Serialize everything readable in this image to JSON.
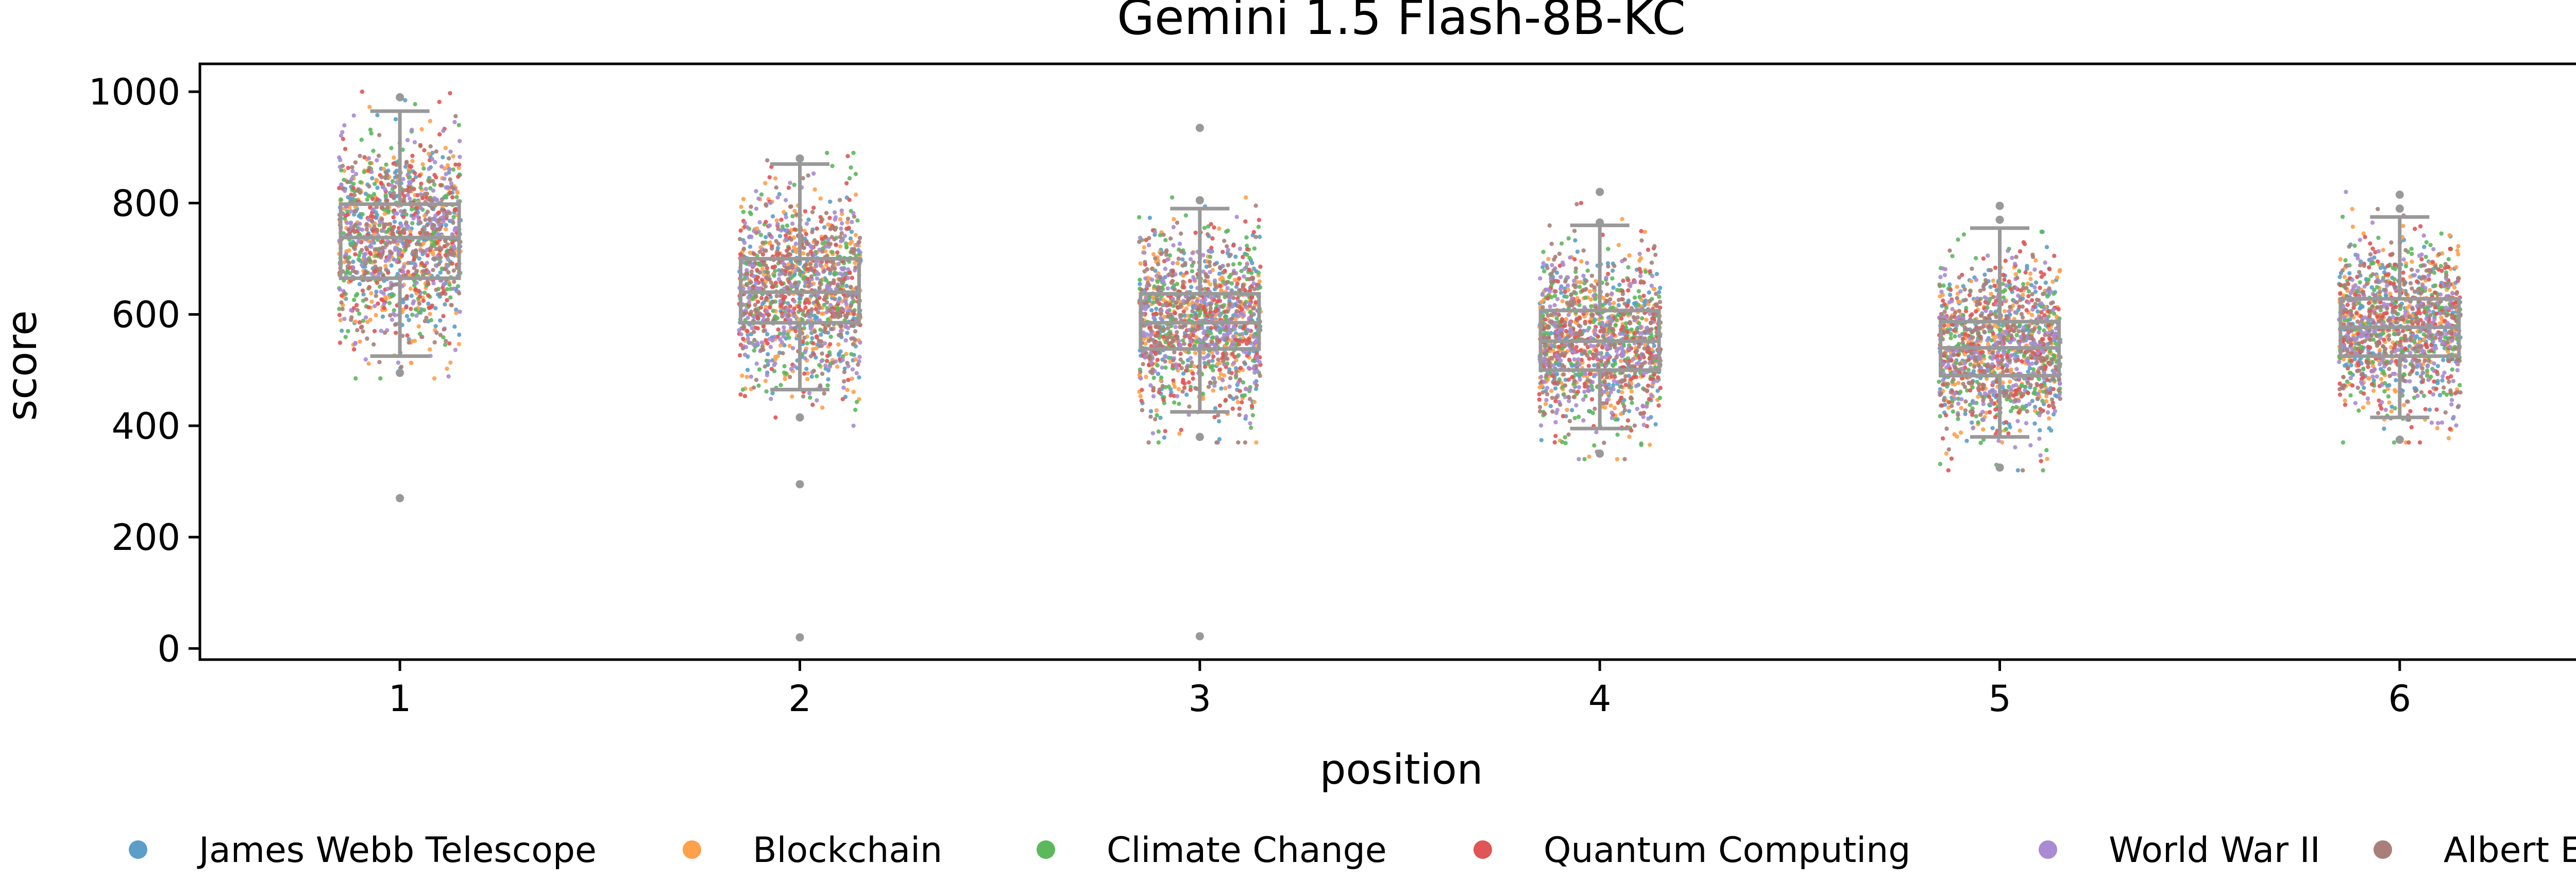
{
  "chart_data": {
    "type": "scatter",
    "subtype": "strip-plot-with-boxplot",
    "title": "Gemini 1.5 Flash-8B-KC",
    "xlabel": "position",
    "ylabel": "score",
    "categories": [
      "1",
      "2",
      "3",
      "4",
      "5",
      "6"
    ],
    "ylim": [
      -20,
      1050
    ],
    "yticks": [
      0,
      200,
      400,
      600,
      800,
      1000
    ],
    "grid": false,
    "legend": {
      "position": "bottom",
      "entries": [
        {
          "name": "James Webb Telescope",
          "color": "#5a9ec9"
        },
        {
          "name": "Blockchain",
          "color": "#ffa04a"
        },
        {
          "name": "Climate Change",
          "color": "#5cb85c"
        },
        {
          "name": "Quantum Computing",
          "color": "#e05555"
        },
        {
          "name": "World War II",
          "color": "#a98bd3"
        },
        {
          "name": "Albert Einstein",
          "color": "#a97f78"
        }
      ]
    },
    "box_color": "#999999",
    "boxplots": [
      {
        "position": "1",
        "whisker_low": 525,
        "q1": 665,
        "median": 738,
        "q3": 798,
        "whisker_high": 965,
        "outliers": [
          270,
          495,
          990
        ]
      },
      {
        "position": "2",
        "whisker_low": 465,
        "q1": 585,
        "median": 640,
        "q3": 700,
        "whisker_high": 870,
        "outliers": [
          20,
          295,
          415,
          880
        ]
      },
      {
        "position": "3",
        "whisker_low": 425,
        "q1": 538,
        "median": 585,
        "q3": 637,
        "whisker_high": 790,
        "outliers": [
          22,
          380,
          805,
          935
        ]
      },
      {
        "position": "4",
        "whisker_low": 395,
        "q1": 500,
        "median": 552,
        "q3": 607,
        "whisker_high": 760,
        "outliers": [
          350,
          765,
          820
        ]
      },
      {
        "position": "5",
        "whisker_low": 380,
        "q1": 490,
        "median": 540,
        "q3": 587,
        "whisker_high": 755,
        "outliers": [
          325,
          770,
          795
        ]
      },
      {
        "position": "6",
        "whisker_low": 415,
        "q1": 525,
        "median": 577,
        "q3": 628,
        "whisker_high": 775,
        "outliers": [
          375,
          790,
          815
        ]
      }
    ],
    "strip_distribution": [
      {
        "position": "1",
        "center": 735,
        "spread": 90,
        "min": 485,
        "max": 1000,
        "points_per_topic": 220
      },
      {
        "position": "2",
        "center": 640,
        "spread": 85,
        "min": 400,
        "max": 890,
        "points_per_topic": 220
      },
      {
        "position": "3",
        "center": 588,
        "spread": 78,
        "min": 370,
        "max": 810,
        "points_per_topic": 220
      },
      {
        "position": "4",
        "center": 553,
        "spread": 75,
        "min": 340,
        "max": 800,
        "points_per_topic": 220
      },
      {
        "position": "5",
        "center": 540,
        "spread": 75,
        "min": 320,
        "max": 780,
        "points_per_topic": 220
      },
      {
        "position": "6",
        "center": 577,
        "spread": 75,
        "min": 370,
        "max": 820,
        "points_per_topic": 220
      }
    ]
  }
}
